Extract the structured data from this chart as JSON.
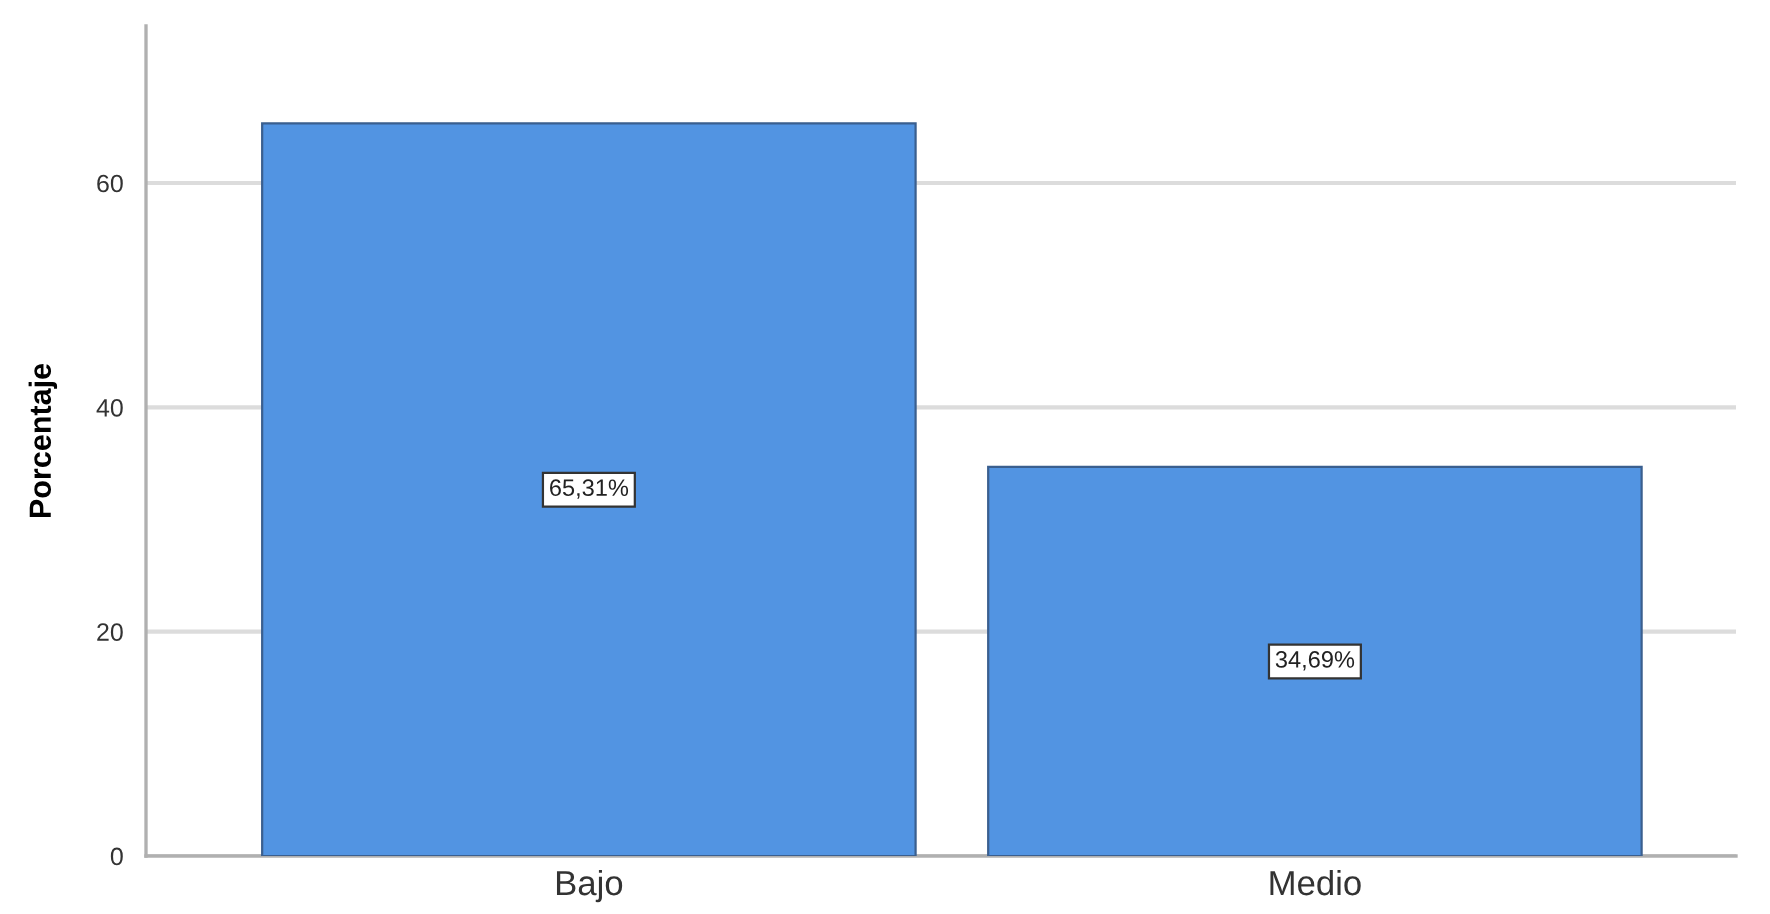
{
  "chart_data": {
    "type": "bar",
    "ylabel": "Porcentaje",
    "categories": [
      "Bajo",
      "Medio"
    ],
    "values": [
      65.31,
      34.69
    ],
    "value_labels": [
      "65,31%",
      "34,69%"
    ],
    "color": "#5294e2",
    "ylim": [
      0,
      74
    ],
    "yticks": [
      0,
      20,
      40,
      60
    ],
    "grid": "y",
    "legend": false
  }
}
